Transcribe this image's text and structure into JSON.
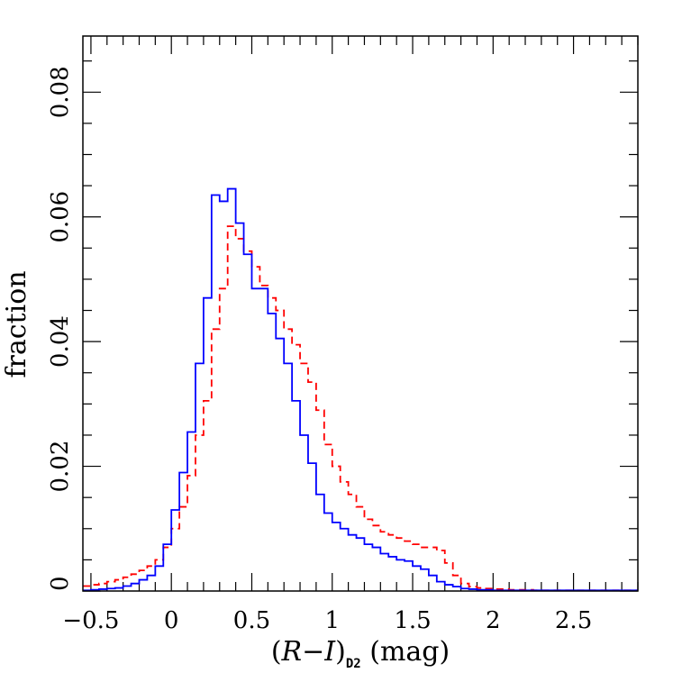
{
  "chart_data": {
    "type": "histogram",
    "xlabel": {
      "prefix": "(",
      "var1": "R",
      "dash": "−",
      "var2": "I",
      "close": ")",
      "subscript": "D2",
      "suffix": " (mag)"
    },
    "ylabel": "fraction",
    "xlim": [
      -0.55,
      2.9
    ],
    "ylim": [
      0,
      0.089
    ],
    "x_ticks": [
      {
        "value": -0.5,
        "label": "−0.5"
      },
      {
        "value": 0,
        "label": "0"
      },
      {
        "value": 0.5,
        "label": "0.5"
      },
      {
        "value": 1,
        "label": "1"
      },
      {
        "value": 1.5,
        "label": "1.5"
      },
      {
        "value": 2,
        "label": "2"
      },
      {
        "value": 2.5,
        "label": "2.5"
      }
    ],
    "y_ticks": [
      {
        "value": 0,
        "label": "0"
      },
      {
        "value": 0.02,
        "label": "0.02"
      },
      {
        "value": 0.04,
        "label": "0.04"
      },
      {
        "value": 0.06,
        "label": "0.06"
      },
      {
        "value": 0.08,
        "label": "0.08"
      }
    ],
    "x_minor_step": 0.1,
    "y_minor_step": 0.005,
    "bin_start": -0.55,
    "bin_width": 0.05,
    "series": [
      {
        "color": "#ff0000",
        "style": "dashed",
        "values": [
          0.0008,
          0.001,
          0.0012,
          0.0015,
          0.0018,
          0.0022,
          0.0027,
          0.0033,
          0.004,
          0.005,
          0.007,
          0.01,
          0.0135,
          0.0185,
          0.025,
          0.0305,
          0.042,
          0.0485,
          0.0585,
          0.0565,
          0.0545,
          0.052,
          0.049,
          0.047,
          0.045,
          0.042,
          0.0395,
          0.0365,
          0.0335,
          0.029,
          0.0235,
          0.02,
          0.0175,
          0.0155,
          0.0135,
          0.0115,
          0.0105,
          0.0095,
          0.009,
          0.0085,
          0.008,
          0.0075,
          0.007,
          0.007,
          0.0065,
          0.0045,
          0.0025,
          0.0012,
          0.0007,
          0.0005,
          0.0004,
          0.0003,
          0.0003,
          0.0002,
          0.0002,
          0.0002,
          0.0001,
          0.0001,
          0.0001,
          0.0001,
          0.0001,
          0.0001,
          0.0001,
          0.0001,
          0.0001,
          0.0001,
          0.0001,
          0.0001,
          0.0001
        ]
      },
      {
        "color": "#0000ff",
        "style": "solid",
        "values": [
          0.0001,
          0.0002,
          0.0003,
          0.0004,
          0.0005,
          0.0008,
          0.0012,
          0.0018,
          0.0025,
          0.004,
          0.0075,
          0.013,
          0.019,
          0.0255,
          0.0365,
          0.047,
          0.0635,
          0.0625,
          0.0645,
          0.059,
          0.054,
          0.0485,
          0.0485,
          0.0445,
          0.0405,
          0.0365,
          0.0305,
          0.025,
          0.0205,
          0.0155,
          0.0125,
          0.011,
          0.01,
          0.009,
          0.0085,
          0.0075,
          0.007,
          0.006,
          0.0055,
          0.005,
          0.0048,
          0.004,
          0.0035,
          0.0025,
          0.0015,
          0.001,
          0.0007,
          0.0004,
          0.0003,
          0.0002,
          0.0002,
          0.0001,
          0.0001,
          0.0001,
          0.0001,
          0.0001,
          0.0001,
          0.0001,
          0.0001,
          0.0001,
          0.0001,
          0.0001,
          0.0001,
          0.0001,
          0.0001,
          0.0001,
          0.0001,
          0.0001,
          0.0001
        ]
      }
    ]
  }
}
